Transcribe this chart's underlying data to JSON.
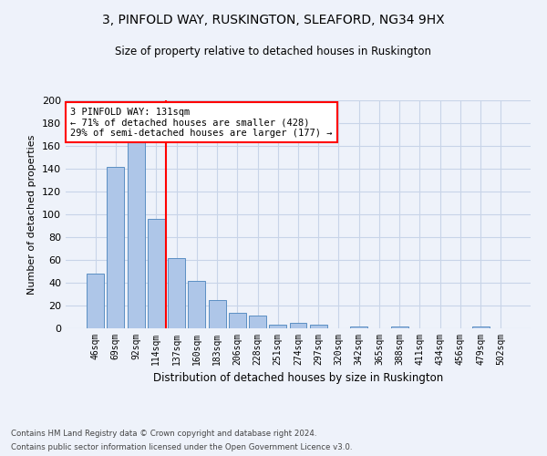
{
  "title1": "3, PINFOLD WAY, RUSKINGTON, SLEAFORD, NG34 9HX",
  "title2": "Size of property relative to detached houses in Ruskington",
  "xlabel": "Distribution of detached houses by size in Ruskington",
  "ylabel": "Number of detached properties",
  "bar_labels": [
    "46sqm",
    "69sqm",
    "92sqm",
    "114sqm",
    "137sqm",
    "160sqm",
    "183sqm",
    "206sqm",
    "228sqm",
    "251sqm",
    "274sqm",
    "297sqm",
    "320sqm",
    "342sqm",
    "365sqm",
    "388sqm",
    "411sqm",
    "434sqm",
    "456sqm",
    "479sqm",
    "502sqm"
  ],
  "bar_values": [
    48,
    142,
    163,
    96,
    62,
    42,
    25,
    14,
    11,
    3,
    5,
    3,
    0,
    2,
    0,
    2,
    0,
    0,
    0,
    2,
    0
  ],
  "bar_color": "#aec6e8",
  "bar_edge_color": "#5b8fc3",
  "grid_color": "#c8d4e8",
  "annotation_text": "3 PINFOLD WAY: 131sqm\n← 71% of detached houses are smaller (428)\n29% of semi-detached houses are larger (177) →",
  "annotation_box_color": "white",
  "annotation_box_edge": "red",
  "vline_color": "red",
  "ylim": [
    0,
    200
  ],
  "yticks": [
    0,
    20,
    40,
    60,
    80,
    100,
    120,
    140,
    160,
    180,
    200
  ],
  "footer1": "Contains HM Land Registry data © Crown copyright and database right 2024.",
  "footer2": "Contains public sector information licensed under the Open Government Licence v3.0.",
  "bg_color": "#eef2fa"
}
